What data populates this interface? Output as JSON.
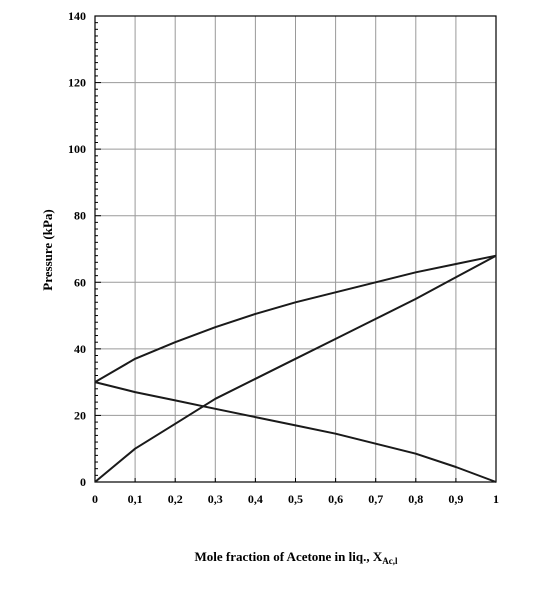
{
  "chart_data": {
    "type": "line",
    "xlabel": "Mole fraction of Acetone in liq., X",
    "xlabel_sub": "Ac,l",
    "ylabel": "Pressure (kPa)",
    "xlim": [
      0,
      1
    ],
    "ylim": [
      0,
      140
    ],
    "xticks": [
      0,
      0.1,
      0.2,
      0.3,
      0.4,
      0.5,
      0.6,
      0.7,
      0.8,
      0.9,
      1
    ],
    "xtick_labels": [
      "0",
      "0,1",
      "0,2",
      "0,3",
      "0,4",
      "0,5",
      "0,6",
      "0,7",
      "0,8",
      "0,9",
      "1"
    ],
    "yticks": [
      0,
      20,
      40,
      60,
      80,
      100,
      120,
      140
    ],
    "ytick_labels": [
      "0",
      "20",
      "40",
      "60",
      "80",
      "100",
      "120",
      "140"
    ],
    "grid": true,
    "series": [
      {
        "x": [
          0,
          0.1,
          0.2,
          0.3,
          0.4,
          0.5,
          0.6,
          0.7,
          0.8,
          0.9,
          1
        ],
        "y": [
          30,
          37,
          42,
          46.5,
          50.5,
          54,
          57,
          60,
          63,
          65.5,
          68
        ]
      },
      {
        "x": [
          0,
          0.1,
          0.2,
          0.3,
          0.4,
          0.5,
          0.6,
          0.7,
          0.8,
          0.9,
          1
        ],
        "y": [
          0,
          10,
          17.5,
          25,
          31,
          37,
          43,
          49,
          55,
          61.5,
          68
        ]
      },
      {
        "x": [
          0,
          0.1,
          0.2,
          0.3,
          0.4,
          0.5,
          0.6,
          0.7,
          0.8,
          0.9,
          1
        ],
        "y": [
          30,
          27,
          24.5,
          22,
          19.5,
          17,
          14.5,
          11.5,
          8.5,
          4.5,
          0
        ]
      }
    ]
  }
}
